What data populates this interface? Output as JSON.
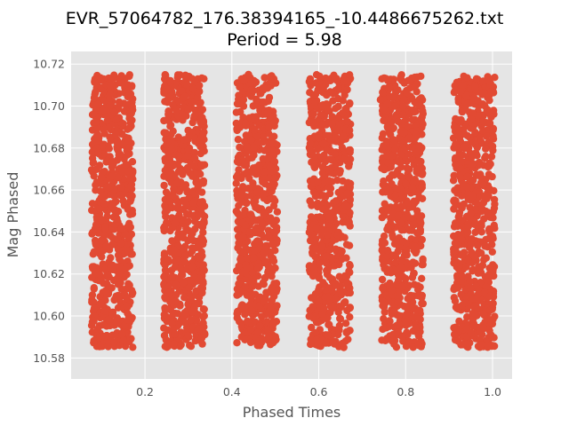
{
  "chart_data": {
    "type": "scatter",
    "title": "EVR_57064782_176.38394165_-10.4486675262.txt",
    "subtitle": "Period = 5.98",
    "xlabel": "Phased Times",
    "ylabel": "Mag Phased",
    "xlim": [
      0.03,
      1.045
    ],
    "ylim": [
      10.57,
      10.726
    ],
    "xticks": [
      {
        "value": 0.2,
        "label": "0.2"
      },
      {
        "value": 0.4,
        "label": "0.4"
      },
      {
        "value": 0.6,
        "label": "0.6"
      },
      {
        "value": 0.8,
        "label": "0.8"
      },
      {
        "value": 1.0,
        "label": "1.0"
      }
    ],
    "yticks": [
      {
        "value": 10.58,
        "label": "10.58"
      },
      {
        "value": 10.6,
        "label": "10.60"
      },
      {
        "value": 10.62,
        "label": "10.62"
      },
      {
        "value": 10.64,
        "label": "10.64"
      },
      {
        "value": 10.66,
        "label": "10.66"
      },
      {
        "value": 10.68,
        "label": "10.68"
      },
      {
        "value": 10.7,
        "label": "10.70"
      },
      {
        "value": 10.72,
        "label": "10.72"
      }
    ],
    "grid": true,
    "series": [
      {
        "color": "#E24A33",
        "clusters": [
          {
            "x_min": 0.077,
            "x_max": 0.172,
            "y_min": 10.585,
            "y_max": 10.715
          },
          {
            "x_min": 0.243,
            "x_max": 0.338,
            "y_min": 10.585,
            "y_max": 10.715
          },
          {
            "x_min": 0.41,
            "x_max": 0.505,
            "y_min": 10.585,
            "y_max": 10.715
          },
          {
            "x_min": 0.578,
            "x_max": 0.673,
            "y_min": 10.585,
            "y_max": 10.715
          },
          {
            "x_min": 0.745,
            "x_max": 0.84,
            "y_min": 10.585,
            "y_max": 10.715
          },
          {
            "x_min": 0.91,
            "x_max": 1.005,
            "y_min": 10.585,
            "y_max": 10.715
          }
        ],
        "outliers": [
          {
            "x": 0.742,
            "y": 10.703
          },
          {
            "x": 0.992,
            "y": 10.712
          },
          {
            "x": 0.963,
            "y": 10.713
          },
          {
            "x": 0.993,
            "y": 10.593
          },
          {
            "x": 0.168,
            "y": 10.662
          }
        ]
      }
    ]
  }
}
